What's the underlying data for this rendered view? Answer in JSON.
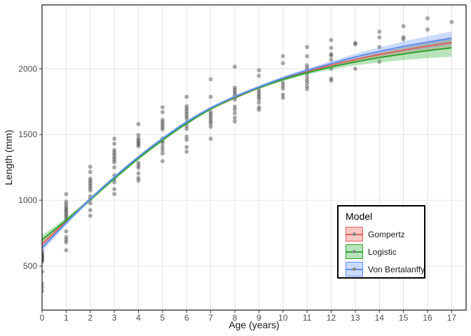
{
  "chart_data": {
    "type": "scatter",
    "title": "",
    "xlabel": "Age (years)",
    "ylabel": "Length (mm)",
    "xlim": [
      0,
      17.6
    ],
    "ylim": [
      165,
      2486
    ],
    "x_ticks": [
      0,
      1,
      2,
      3,
      4,
      5,
      6,
      7,
      8,
      9,
      10,
      11,
      12,
      13,
      14,
      15,
      16,
      17
    ],
    "x_tick_labels": [
      "0",
      "1",
      "2",
      "3",
      "4",
      "5",
      "6",
      "7",
      "8",
      "9",
      "10",
      "11",
      "12",
      "13",
      "14",
      "15",
      "16",
      "17"
    ],
    "y_ticks": [
      500,
      1000,
      1500,
      2000
    ],
    "y_tick_labels": [
      "500",
      "1000",
      "1500",
      "2000"
    ],
    "grid": "major-only",
    "legend_position": "bottom-right",
    "points": [
      {
        "age": 0,
        "lengths": [
          618,
          602,
          590,
          580,
          571,
          562,
          553,
          543,
          533,
          457,
          365,
          338,
          310
        ]
      },
      {
        "age": 1,
        "lengths": [
          1047,
          990,
          970,
          952,
          936,
          922,
          908,
          894,
          880,
          864,
          848,
          764,
          720,
          700,
          680,
          620
        ]
      },
      {
        "age": 2,
        "lengths": [
          1255,
          1216,
          1164,
          1147,
          1129,
          1111,
          1093,
          1075,
          1030,
          1008,
          978,
          925,
          882
        ]
      },
      {
        "age": 3,
        "lengths": [
          1468,
          1431,
          1382,
          1363,
          1345,
          1326,
          1308,
          1290,
          1250,
          1190,
          1160,
          1137,
          1085,
          1048
        ]
      },
      {
        "age": 4,
        "lengths": [
          1580,
          1496,
          1470,
          1455,
          1440,
          1426,
          1411,
          1285,
          1266,
          1248,
          1205,
          1170,
          1150
        ]
      },
      {
        "age": 5,
        "lengths": [
          1707,
          1670,
          1612,
          1594,
          1576,
          1558,
          1540,
          1470,
          1452,
          1434,
          1406,
          1382,
          1356,
          1298
        ]
      },
      {
        "age": 6,
        "lengths": [
          1787,
          1716,
          1697,
          1678,
          1659,
          1640,
          1621,
          1590,
          1566,
          1544,
          1484,
          1460,
          1404,
          1370
        ]
      },
      {
        "age": 7,
        "lengths": [
          1920,
          1787,
          1673,
          1655,
          1638,
          1620,
          1602,
          1584,
          1560,
          1468
        ]
      },
      {
        "age": 8,
        "lengths": [
          2016,
          1856,
          1838,
          1820,
          1802,
          1784,
          1766,
          1713,
          1690,
          1662,
          1628,
          1600
        ]
      },
      {
        "age": 9,
        "lengths": [
          1989,
          1947,
          1840,
          1822,
          1804,
          1786,
          1768,
          1742,
          1707,
          1688
        ]
      },
      {
        "age": 10,
        "lengths": [
          2096,
          2043,
          1894,
          1872,
          1850,
          1803,
          1780
        ]
      },
      {
        "age": 11,
        "lengths": [
          2165,
          2096,
          2027,
          2006,
          1986,
          1962,
          1936,
          1914,
          1894,
          1867,
          1846
        ]
      },
      {
        "age": 12,
        "lengths": [
          2218,
          2160,
          2113,
          2100,
          2069,
          2000,
          1926,
          1910
        ]
      },
      {
        "age": 13,
        "lengths": [
          2197,
          2186,
          2000
        ]
      },
      {
        "age": 14,
        "lengths": [
          2282,
          2239,
          2165,
          2053
        ]
      },
      {
        "age": 15,
        "lengths": [
          2325,
          2240,
          2224
        ]
      },
      {
        "age": 16,
        "lengths": [
          2383,
          2298
        ]
      },
      {
        "age": 17,
        "lengths": [
          2356
        ]
      }
    ],
    "curve_ages": [
      0,
      1,
      2,
      3,
      4,
      5,
      6,
      7,
      8,
      9,
      10,
      11,
      12,
      13,
      14,
      15,
      16,
      17
    ],
    "series": [
      {
        "name": "Gompertz",
        "values": [
          665,
          838,
          1008,
          1170,
          1322,
          1462,
          1588,
          1696,
          1780,
          1856,
          1922,
          1978,
          2028,
          2070,
          2108,
          2142,
          2172,
          2200
        ],
        "band_halfwidth": [
          28,
          16,
          12,
          10,
          10,
          10,
          10,
          10,
          10,
          10,
          10,
          12,
          15,
          20,
          26,
          32,
          38,
          44
        ],
        "line_color": "#e0625b",
        "fill_color": "rgba(240,110,102,0.38)"
      },
      {
        "name": "Logistic",
        "values": [
          700,
          848,
          1005,
          1165,
          1318,
          1458,
          1585,
          1695,
          1782,
          1856,
          1918,
          1970,
          2014,
          2052,
          2085,
          2113,
          2138,
          2160
        ],
        "band_halfwidth": [
          34,
          20,
          15,
          12,
          11,
          11,
          11,
          11,
          11,
          11,
          12,
          14,
          19,
          27,
          36,
          46,
          57,
          68
        ],
        "line_color": "#2da12f",
        "fill_color": "rgba(70,185,75,0.38)"
      },
      {
        "name": "Von Bertalanffy",
        "values": [
          638,
          828,
          1010,
          1176,
          1330,
          1470,
          1596,
          1702,
          1788,
          1862,
          1930,
          1988,
          2040,
          2090,
          2132,
          2170,
          2202,
          2232
        ],
        "band_halfwidth": [
          30,
          18,
          13,
          11,
          10,
          10,
          10,
          10,
          10,
          11,
          12,
          14,
          18,
          24,
          31,
          38,
          45,
          52
        ],
        "line_color": "#5f8ff2",
        "fill_color": "rgba(120,160,245,0.38)"
      }
    ],
    "legend": {
      "title": "Model",
      "entries": [
        "Gompertz",
        "Logistic",
        "Von Bertalanffy"
      ]
    },
    "colors": {
      "point": "rgba(35,35,35,0.38)",
      "grid": "#e4e4e4",
      "panel_border": "#2b2b2b",
      "tick": "#333333",
      "tick_label": "#4d4d4d",
      "axis_title": "#1a1a1a",
      "legend_dot": "#8a8a8a",
      "background": "#ffffff"
    }
  }
}
